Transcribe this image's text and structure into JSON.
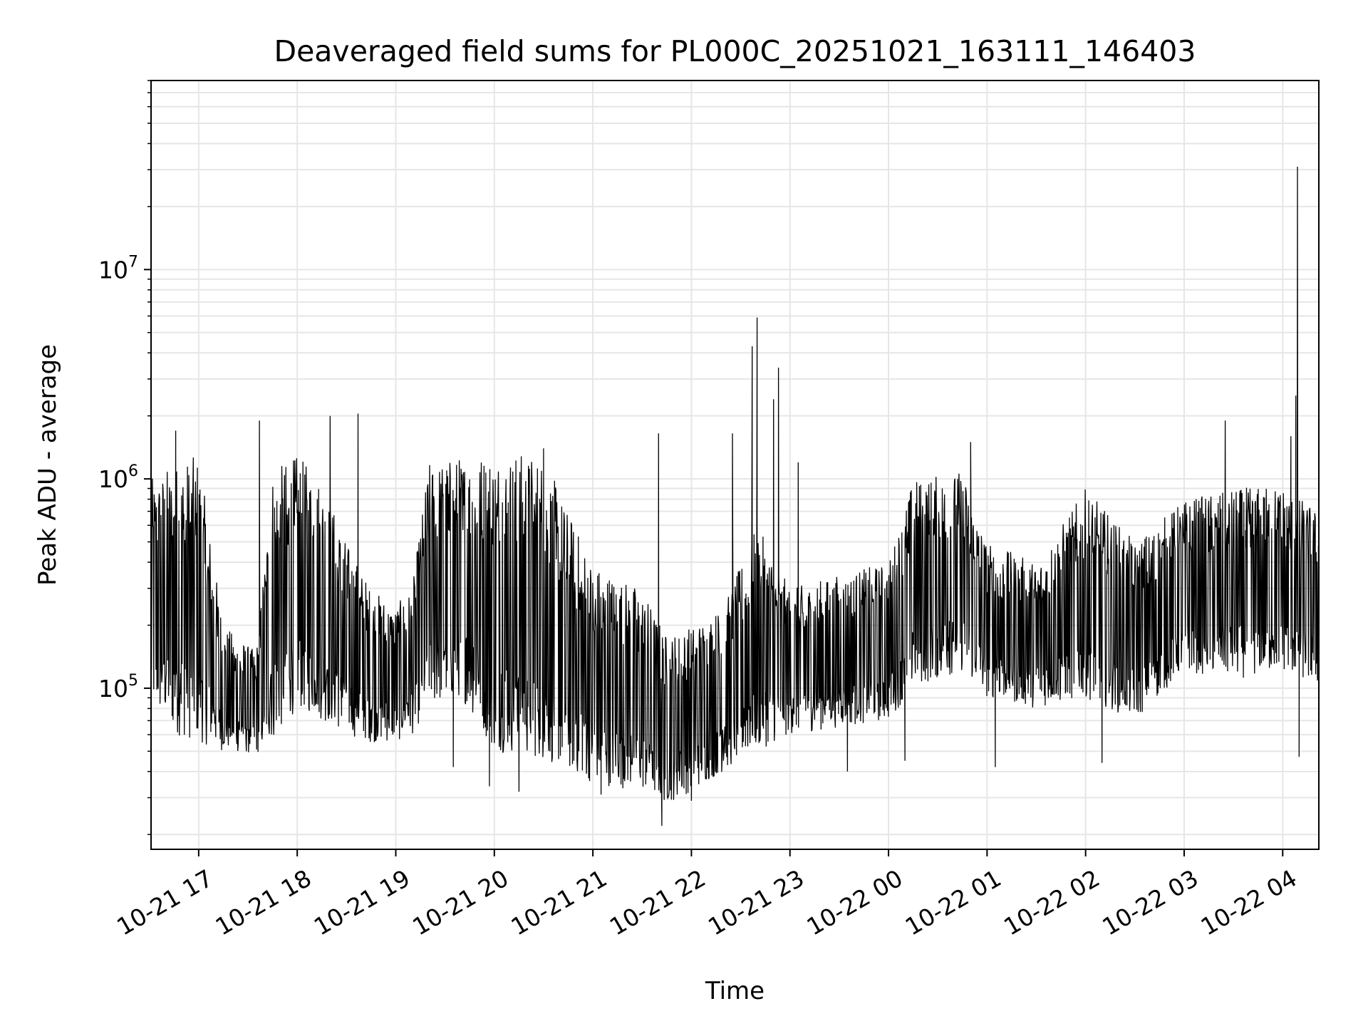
{
  "chart_data": {
    "type": "line",
    "title": "Deaveraged field sums for PL000C_20251021_163111_146403",
    "xlabel": "Time",
    "ylabel": "Peak ADU - average",
    "x_range": [
      "2025-10-21 16:31",
      "2025-10-22 04:22"
    ],
    "x_ticks": [
      {
        "t": "2025-10-21 17:00",
        "label": "10-21 17"
      },
      {
        "t": "2025-10-21 18:00",
        "label": "10-21 18"
      },
      {
        "t": "2025-10-21 19:00",
        "label": "10-21 19"
      },
      {
        "t": "2025-10-21 20:00",
        "label": "10-21 20"
      },
      {
        "t": "2025-10-21 21:00",
        "label": "10-21 21"
      },
      {
        "t": "2025-10-21 22:00",
        "label": "10-21 22"
      },
      {
        "t": "2025-10-21 23:00",
        "label": "10-21 23"
      },
      {
        "t": "2025-10-22 00:00",
        "label": "10-22 00"
      },
      {
        "t": "2025-10-22 01:00",
        "label": "10-22 01"
      },
      {
        "t": "2025-10-22 02:00",
        "label": "10-22 02"
      },
      {
        "t": "2025-10-22 03:00",
        "label": "10-22 03"
      },
      {
        "t": "2025-10-22 04:00",
        "label": "10-22 04"
      }
    ],
    "y_scale": "log",
    "ylim": [
      17000,
      80000000
    ],
    "y_ticks": [
      {
        "value": 100000,
        "base": "10",
        "exp": "5"
      },
      {
        "value": 1000000,
        "base": "10",
        "exp": "6"
      },
      {
        "value": 10000000,
        "base": "10",
        "exp": "7"
      }
    ],
    "grid": true,
    "line_color": "#000000",
    "grid_color": "#e6e6e6",
    "envelope": [
      {
        "t": "2025-10-21 16:31",
        "low": 80000,
        "high": 1000000
      },
      {
        "t": "2025-10-21 16:45",
        "low": 60000,
        "high": 1200000
      },
      {
        "t": "2025-10-21 17:00",
        "low": 55000,
        "high": 1300000
      },
      {
        "t": "2025-10-21 17:15",
        "low": 50000,
        "high": 200000
      },
      {
        "t": "2025-10-21 17:35",
        "low": 48000,
        "high": 150000
      },
      {
        "t": "2025-10-21 17:45",
        "low": 55000,
        "high": 1100000
      },
      {
        "t": "2025-10-21 18:00",
        "low": 80000,
        "high": 1300000
      },
      {
        "t": "2025-10-21 18:15",
        "low": 70000,
        "high": 1000000
      },
      {
        "t": "2025-10-21 18:30",
        "low": 60000,
        "high": 500000
      },
      {
        "t": "2025-10-21 18:45",
        "low": 55000,
        "high": 300000
      },
      {
        "t": "2025-10-21 19:00",
        "low": 55000,
        "high": 250000
      },
      {
        "t": "2025-10-21 19:10",
        "low": 60000,
        "high": 300000
      },
      {
        "t": "2025-10-21 19:20",
        "low": 80000,
        "high": 1200000
      },
      {
        "t": "2025-10-21 19:40",
        "low": 90000,
        "high": 1300000
      },
      {
        "t": "2025-10-21 20:00",
        "low": 50000,
        "high": 1400000
      },
      {
        "t": "2025-10-21 20:30",
        "low": 45000,
        "high": 1300000
      },
      {
        "t": "2025-10-21 20:45",
        "low": 40000,
        "high": 700000
      },
      {
        "t": "2025-10-21 21:00",
        "low": 35000,
        "high": 400000
      },
      {
        "t": "2025-10-21 21:30",
        "low": 32000,
        "high": 300000
      },
      {
        "t": "2025-10-21 21:45",
        "low": 28000,
        "high": 180000
      },
      {
        "t": "2025-10-21 22:00",
        "low": 32000,
        "high": 200000
      },
      {
        "t": "2025-10-21 22:20",
        "low": 40000,
        "high": 250000
      },
      {
        "t": "2025-10-21 22:40",
        "low": 50000,
        "high": 600000
      },
      {
        "t": "2025-10-21 23:00",
        "low": 60000,
        "high": 300000
      },
      {
        "t": "2025-10-21 23:30",
        "low": 65000,
        "high": 350000
      },
      {
        "t": "2025-10-22 00:00",
        "low": 70000,
        "high": 400000
      },
      {
        "t": "2025-10-22 00:15",
        "low": 100000,
        "high": 1000000
      },
      {
        "t": "2025-10-22 00:45",
        "low": 120000,
        "high": 1100000
      },
      {
        "t": "2025-10-22 01:00",
        "low": 90000,
        "high": 500000
      },
      {
        "t": "2025-10-22 01:30",
        "low": 80000,
        "high": 400000
      },
      {
        "t": "2025-10-22 02:00",
        "low": 90000,
        "high": 900000
      },
      {
        "t": "2025-10-22 02:30",
        "low": 70000,
        "high": 500000
      },
      {
        "t": "2025-10-22 03:00",
        "low": 120000,
        "high": 800000
      },
      {
        "t": "2025-10-22 03:30",
        "low": 110000,
        "high": 900000
      },
      {
        "t": "2025-10-22 04:00",
        "low": 120000,
        "high": 950000
      },
      {
        "t": "2025-10-22 04:22",
        "low": 100000,
        "high": 700000
      }
    ],
    "spikes": [
      {
        "t": "2025-10-21 16:46",
        "value": 1700000
      },
      {
        "t": "2025-10-21 17:37",
        "value": 1900000
      },
      {
        "t": "2025-10-21 18:20",
        "value": 2000000
      },
      {
        "t": "2025-10-21 18:37",
        "value": 2050000
      },
      {
        "t": "2025-10-21 20:30",
        "value": 1400000
      },
      {
        "t": "2025-10-21 21:40",
        "value": 1650000
      },
      {
        "t": "2025-10-21 22:25",
        "value": 1650000
      },
      {
        "t": "2025-10-21 22:37",
        "value": 4300000
      },
      {
        "t": "2025-10-21 22:40",
        "value": 5900000
      },
      {
        "t": "2025-10-21 22:50",
        "value": 2400000
      },
      {
        "t": "2025-10-21 22:53",
        "value": 3400000
      },
      {
        "t": "2025-10-21 23:05",
        "value": 1200000
      },
      {
        "t": "2025-10-22 00:50",
        "value": 1500000
      },
      {
        "t": "2025-10-22 03:25",
        "value": 1900000
      },
      {
        "t": "2025-10-22 04:05",
        "value": 1600000
      },
      {
        "t": "2025-10-22 04:08",
        "value": 2500000
      },
      {
        "t": "2025-10-22 04:09",
        "value": 31000000
      }
    ],
    "dips": [
      {
        "t": "2025-10-21 19:35",
        "value": 42000
      },
      {
        "t": "2025-10-21 19:57",
        "value": 34000
      },
      {
        "t": "2025-10-21 20:15",
        "value": 32000
      },
      {
        "t": "2025-10-21 21:05",
        "value": 31000
      },
      {
        "t": "2025-10-21 21:42",
        "value": 22000
      },
      {
        "t": "2025-10-21 22:00",
        "value": 29000
      },
      {
        "t": "2025-10-21 23:35",
        "value": 40000
      },
      {
        "t": "2025-10-22 00:10",
        "value": 45000
      },
      {
        "t": "2025-10-22 01:05",
        "value": 42000
      },
      {
        "t": "2025-10-22 02:10",
        "value": 44000
      },
      {
        "t": "2025-10-22 04:10",
        "value": 47000
      }
    ]
  }
}
